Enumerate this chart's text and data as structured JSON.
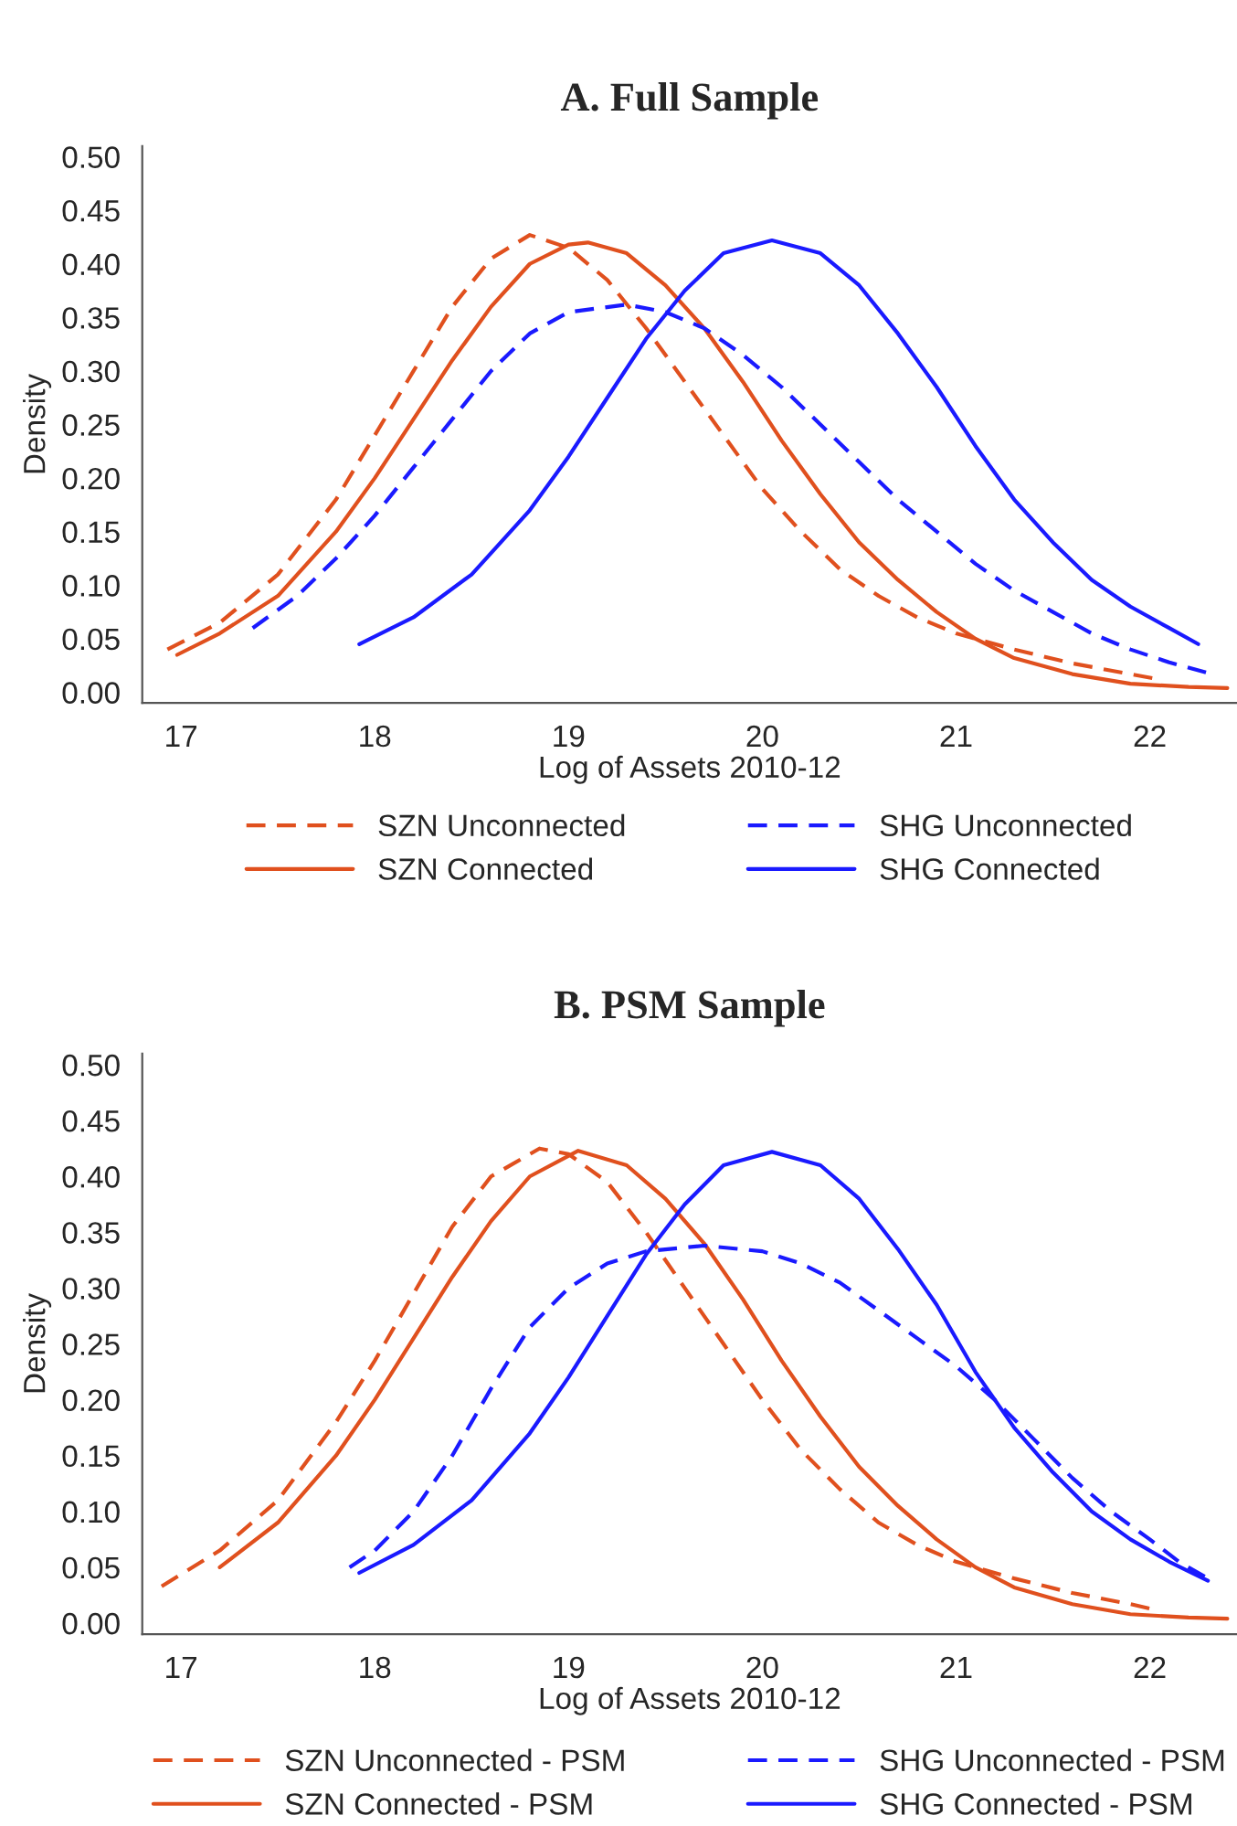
{
  "chart_data": [
    {
      "type": "line",
      "title": "A. Full Sample",
      "xlabel": "Log of Assets 2010-12",
      "ylabel": "Density",
      "xlim": [
        16.8,
        22.45
      ],
      "xticks": [
        17,
        18,
        19,
        20,
        21,
        22
      ],
      "ylim": [
        -0.01,
        0.51
      ],
      "yticks": [
        {
          "value": 0,
          "label": "0.00"
        },
        {
          "value": 0.05,
          "label": "0.05"
        },
        {
          "value": 0.1,
          "label": "0.10"
        },
        {
          "value": 0.15,
          "label": "0.15"
        },
        {
          "value": 0.2,
          "label": "0.20"
        },
        {
          "value": 0.25,
          "label": "0.25"
        },
        {
          "value": 0.3,
          "label": "0.30"
        },
        {
          "value": 0.35,
          "label": "0.35"
        },
        {
          "value": 0.4,
          "label": "0.40"
        },
        {
          "value": 0.45,
          "label": "0.45"
        },
        {
          "value": 0.5,
          "label": "0.50"
        }
      ],
      "grid": false,
      "legend": "bottom",
      "marker": "none",
      "series": [
        {
          "name": "SZN Unconnected",
          "color": "#e0501e",
          "line_style": "dashed",
          "x": [
            16.93,
            17.2,
            17.5,
            17.8,
            18.0,
            18.2,
            18.4,
            18.6,
            18.8,
            19.0,
            19.2,
            19.4,
            19.6,
            19.8,
            20.0,
            20.2,
            20.4,
            20.6,
            20.8,
            21.0,
            21.3,
            21.6,
            21.9,
            22.05
          ],
          "values": [
            0.04,
            0.065,
            0.11,
            0.18,
            0.24,
            0.3,
            0.36,
            0.405,
            0.427,
            0.415,
            0.385,
            0.34,
            0.29,
            0.24,
            0.19,
            0.15,
            0.115,
            0.09,
            0.07,
            0.055,
            0.04,
            0.027,
            0.017,
            0.012
          ]
        },
        {
          "name": "SZN Connected",
          "color": "#e0501e",
          "line_style": "solid",
          "x": [
            16.98,
            17.2,
            17.5,
            17.8,
            18.0,
            18.2,
            18.4,
            18.6,
            18.8,
            19.0,
            19.1,
            19.3,
            19.5,
            19.7,
            19.9,
            20.1,
            20.3,
            20.5,
            20.7,
            20.9,
            21.1,
            21.3,
            21.6,
            21.9,
            22.2,
            22.4
          ],
          "values": [
            0.035,
            0.055,
            0.09,
            0.15,
            0.2,
            0.255,
            0.31,
            0.36,
            0.4,
            0.418,
            0.42,
            0.41,
            0.38,
            0.34,
            0.29,
            0.235,
            0.185,
            0.14,
            0.105,
            0.075,
            0.05,
            0.032,
            0.017,
            0.008,
            0.005,
            0.004
          ]
        },
        {
          "name": "SHG Unconnected",
          "color": "#1a1aff",
          "line_style": "dashed",
          "x": [
            17.37,
            17.6,
            17.8,
            18.0,
            18.2,
            18.4,
            18.6,
            18.8,
            19.0,
            19.3,
            19.5,
            19.7,
            19.9,
            20.1,
            20.3,
            20.5,
            20.7,
            20.9,
            21.1,
            21.3,
            21.5,
            21.7,
            21.9,
            22.1,
            22.3
          ],
          "values": [
            0.06,
            0.09,
            0.125,
            0.165,
            0.21,
            0.255,
            0.3,
            0.335,
            0.355,
            0.362,
            0.355,
            0.34,
            0.315,
            0.285,
            0.25,
            0.215,
            0.18,
            0.15,
            0.12,
            0.095,
            0.075,
            0.055,
            0.04,
            0.028,
            0.018
          ]
        },
        {
          "name": "SHG Connected",
          "color": "#1a1aff",
          "line_style": "solid",
          "x": [
            17.92,
            18.2,
            18.5,
            18.8,
            19.0,
            19.2,
            19.4,
            19.6,
            19.8,
            20.05,
            20.3,
            20.5,
            20.7,
            20.9,
            21.1,
            21.3,
            21.5,
            21.7,
            21.9,
            22.1,
            22.25
          ],
          "values": [
            0.045,
            0.07,
            0.11,
            0.17,
            0.22,
            0.275,
            0.33,
            0.375,
            0.41,
            0.422,
            0.41,
            0.38,
            0.335,
            0.285,
            0.23,
            0.18,
            0.14,
            0.105,
            0.08,
            0.06,
            0.045
          ]
        }
      ]
    },
    {
      "type": "line",
      "title": "B. PSM Sample",
      "xlabel": "Log of Assets 2010-12",
      "ylabel": "Density",
      "xlim": [
        16.8,
        22.45
      ],
      "xticks": [
        17,
        18,
        19,
        20,
        21,
        22
      ],
      "ylim": [
        -0.01,
        0.51
      ],
      "yticks": [
        {
          "value": 0,
          "label": "0.00"
        },
        {
          "value": 0.05,
          "label": "0.05"
        },
        {
          "value": 0.1,
          "label": "0.10"
        },
        {
          "value": 0.15,
          "label": "0.15"
        },
        {
          "value": 0.2,
          "label": "0.20"
        },
        {
          "value": 0.25,
          "label": "0.25"
        },
        {
          "value": 0.3,
          "label": "0.30"
        },
        {
          "value": 0.35,
          "label": "0.35"
        },
        {
          "value": 0.4,
          "label": "0.40"
        },
        {
          "value": 0.45,
          "label": "0.45"
        },
        {
          "value": 0.5,
          "label": "0.50"
        }
      ],
      "grid": false,
      "legend": "bottom",
      "marker": "none",
      "series": [
        {
          "name": "SZN Unconnected - PSM",
          "color": "#e0501e",
          "line_style": "dashed",
          "x": [
            16.9,
            17.2,
            17.5,
            17.8,
            18.0,
            18.2,
            18.4,
            18.6,
            18.85,
            19.0,
            19.2,
            19.4,
            19.6,
            19.8,
            20.0,
            20.2,
            20.4,
            20.6,
            20.8,
            21.0,
            21.3,
            21.6,
            21.9,
            22.0
          ],
          "values": [
            0.033,
            0.065,
            0.11,
            0.18,
            0.235,
            0.295,
            0.355,
            0.4,
            0.425,
            0.42,
            0.395,
            0.35,
            0.3,
            0.25,
            0.2,
            0.155,
            0.12,
            0.09,
            0.07,
            0.055,
            0.04,
            0.027,
            0.017,
            0.013
          ]
        },
        {
          "name": "SZN Connected - PSM",
          "color": "#e0501e",
          "line_style": "solid",
          "x": [
            17.2,
            17.5,
            17.8,
            18.0,
            18.2,
            18.4,
            18.6,
            18.8,
            19.05,
            19.3,
            19.5,
            19.7,
            19.9,
            20.1,
            20.3,
            20.5,
            20.7,
            20.9,
            21.1,
            21.3,
            21.6,
            21.9,
            22.2,
            22.4
          ],
          "values": [
            0.05,
            0.09,
            0.15,
            0.2,
            0.255,
            0.31,
            0.36,
            0.4,
            0.423,
            0.41,
            0.38,
            0.34,
            0.29,
            0.235,
            0.185,
            0.14,
            0.105,
            0.075,
            0.05,
            0.032,
            0.017,
            0.008,
            0.005,
            0.004
          ]
        },
        {
          "name": "SHG Unconnected - PSM",
          "color": "#1a1aff",
          "line_style": "dashed",
          "x": [
            17.87,
            18.0,
            18.2,
            18.4,
            18.6,
            18.8,
            19.0,
            19.2,
            19.4,
            19.7,
            20.0,
            20.2,
            20.4,
            20.6,
            20.8,
            21.0,
            21.2,
            21.4,
            21.6,
            21.8,
            22.0,
            22.15,
            22.3
          ],
          "values": [
            0.05,
            0.065,
            0.1,
            0.15,
            0.21,
            0.265,
            0.3,
            0.322,
            0.333,
            0.338,
            0.333,
            0.322,
            0.305,
            0.28,
            0.255,
            0.23,
            0.2,
            0.165,
            0.13,
            0.1,
            0.075,
            0.055,
            0.04
          ]
        },
        {
          "name": "SHG Connected - PSM",
          "color": "#1a1aff",
          "line_style": "solid",
          "x": [
            17.92,
            18.2,
            18.5,
            18.8,
            19.0,
            19.2,
            19.4,
            19.6,
            19.8,
            20.05,
            20.3,
            20.5,
            20.7,
            20.9,
            21.1,
            21.3,
            21.5,
            21.7,
            21.9,
            22.1,
            22.3
          ],
          "values": [
            0.045,
            0.07,
            0.11,
            0.17,
            0.22,
            0.275,
            0.33,
            0.375,
            0.41,
            0.422,
            0.41,
            0.38,
            0.335,
            0.285,
            0.225,
            0.175,
            0.135,
            0.1,
            0.075,
            0.055,
            0.038
          ]
        }
      ]
    }
  ]
}
